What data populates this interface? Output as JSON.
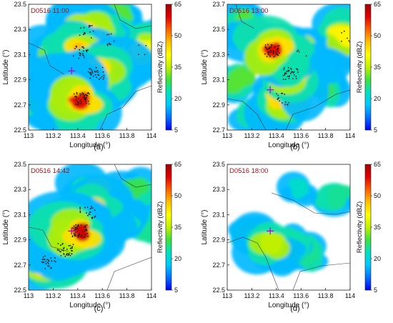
{
  "colorbar": {
    "label": "Reflectivity (dBZ)",
    "ticks": [
      5,
      20,
      35,
      50,
      65
    ],
    "range": [
      5,
      65
    ],
    "stops": [
      "#0000ee",
      "#0070ff",
      "#00c8ff",
      "#00e0c0",
      "#40e040",
      "#c0f000",
      "#ffff00",
      "#ffc000",
      "#ff6000",
      "#e00000",
      "#a00000"
    ]
  },
  "chart_data": [
    {
      "type": "heatmap",
      "panel_label": "(a)",
      "stamp": "D0516 11:00",
      "xlabel": "Longitude (°)",
      "ylabel": "Latitude (°)",
      "xlim": [
        113,
        114
      ],
      "ylim": [
        22.5,
        23.5
      ],
      "xticks": [
        "113",
        "113.2",
        "113.4",
        "113.6",
        "113.8",
        "114"
      ],
      "yticks": [
        "22.5",
        "22.7",
        "22.9",
        "23.1",
        "23.3",
        "23.5"
      ],
      "colorbar_label": "Reflectivity (dBZ)",
      "cells": [
        {
          "x": 113.43,
          "y": 22.75,
          "dbz": 58
        },
        {
          "x": 113.55,
          "y": 22.95,
          "dbz": 52
        },
        {
          "x": 113.42,
          "y": 23.12,
          "dbz": 48
        },
        {
          "x": 113.48,
          "y": 23.28,
          "dbz": 45
        },
        {
          "x": 113.65,
          "y": 23.22,
          "dbz": 42
        },
        {
          "x": 113.92,
          "y": 23.15,
          "dbz": 40
        },
        {
          "x": 113.2,
          "y": 23.1,
          "dbz": 32
        },
        {
          "x": 113.08,
          "y": 22.7,
          "dbz": 30
        },
        {
          "x": 113.3,
          "y": 22.9,
          "dbz": 28
        },
        {
          "x": 113.75,
          "y": 23.4,
          "dbz": 30
        }
      ]
    },
    {
      "type": "heatmap",
      "panel_label": "(b)",
      "stamp": "D0516 13:00",
      "xlabel": "Longitude (°)",
      "ylabel": "Latitude (°)",
      "xlim": [
        113,
        114
      ],
      "ylim": [
        22.7,
        23.7
      ],
      "xticks": [
        "113",
        "113.2",
        "113.4",
        "113.6",
        "113.8",
        "114"
      ],
      "yticks": [
        "22.7",
        "22.9",
        "23.1",
        "23.3",
        "23.5",
        "23.7"
      ],
      "colorbar_label": "Reflectivity (dBZ)",
      "cells": [
        {
          "x": 113.37,
          "y": 23.33,
          "dbz": 58
        },
        {
          "x": 113.52,
          "y": 23.15,
          "dbz": 55
        },
        {
          "x": 113.45,
          "y": 22.95,
          "dbz": 45
        },
        {
          "x": 113.62,
          "y": 23.3,
          "dbz": 40
        },
        {
          "x": 113.97,
          "y": 23.45,
          "dbz": 42
        },
        {
          "x": 113.15,
          "y": 23.55,
          "dbz": 30
        },
        {
          "x": 113.8,
          "y": 23.05,
          "dbz": 28
        },
        {
          "x": 113.1,
          "y": 23.1,
          "dbz": 30
        },
        {
          "x": 113.25,
          "y": 22.85,
          "dbz": 26
        }
      ]
    },
    {
      "type": "heatmap",
      "panel_label": "(c)",
      "stamp": "D0516 14:42",
      "xlabel": "Longitude (°)",
      "ylabel": "Latitude (°)",
      "xlim": [
        113,
        114
      ],
      "ylim": [
        22.5,
        23.5
      ],
      "xticks": [
        "113",
        "113.2",
        "113.4",
        "113.6",
        "113.8",
        "114"
      ],
      "yticks": [
        "22.5",
        "22.7",
        "22.9",
        "23.1",
        "23.3",
        "23.5"
      ],
      "colorbar_label": "Reflectivity (dBZ)",
      "cells": [
        {
          "x": 113.42,
          "y": 22.97,
          "dbz": 60
        },
        {
          "x": 113.3,
          "y": 22.82,
          "dbz": 55
        },
        {
          "x": 113.17,
          "y": 22.72,
          "dbz": 50
        },
        {
          "x": 113.48,
          "y": 23.12,
          "dbz": 48
        },
        {
          "x": 113.55,
          "y": 23.25,
          "dbz": 38
        },
        {
          "x": 113.72,
          "y": 23.1,
          "dbz": 32
        },
        {
          "x": 113.85,
          "y": 23.3,
          "dbz": 28
        },
        {
          "x": 113.6,
          "y": 22.95,
          "dbz": 30
        },
        {
          "x": 113.95,
          "y": 23.0,
          "dbz": 25
        }
      ]
    },
    {
      "type": "heatmap",
      "panel_label": "(d)",
      "stamp": "D0516 18:00",
      "xlabel": "Longitude (°)",
      "ylabel": "Latitude (°)",
      "xlim": [
        113,
        114
      ],
      "ylim": [
        22.5,
        23.5
      ],
      "xticks": [
        "113",
        "113.2",
        "113.4",
        "113.6",
        "113.8",
        "114"
      ],
      "yticks": [
        "22.5",
        "22.7",
        "22.9",
        "23.1",
        "23.3",
        "23.5"
      ],
      "colorbar_label": "Reflectivity (dBZ)",
      "cells": [
        {
          "x": 113.35,
          "y": 22.88,
          "dbz": 35
        },
        {
          "x": 113.5,
          "y": 22.82,
          "dbz": 30
        },
        {
          "x": 113.15,
          "y": 22.92,
          "dbz": 28
        },
        {
          "x": 113.65,
          "y": 22.8,
          "dbz": 25
        },
        {
          "x": 113.6,
          "y": 23.32,
          "dbz": 22
        },
        {
          "x": 113.9,
          "y": 23.25,
          "dbz": 25
        },
        {
          "x": 113.45,
          "y": 22.72,
          "dbz": 22
        }
      ]
    }
  ]
}
